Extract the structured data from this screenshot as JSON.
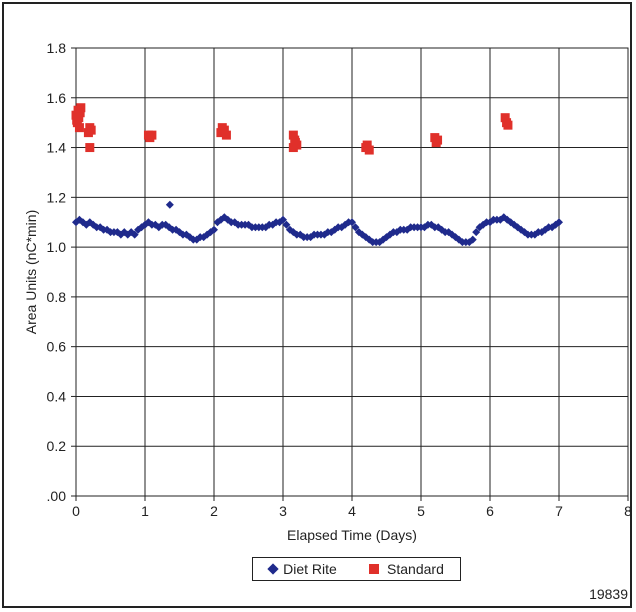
{
  "chart_data": {
    "type": "scatter",
    "title": "",
    "xlabel": "Elapsed Time (Days)",
    "ylabel": "Area Units (nC*min)",
    "xlim": [
      0,
      8
    ],
    "ylim": [
      0,
      1.8
    ],
    "x_ticks": [
      "0",
      "1",
      "2",
      "3",
      "4",
      "5",
      "6",
      "7",
      "8"
    ],
    "y_ticks": [
      ".00",
      "0.2",
      "0.4",
      "0.6",
      "0.8",
      "1.0",
      "1.2",
      "1.4",
      "1.6",
      "1.8"
    ],
    "grid": true,
    "legend_position": "bottom-center",
    "series": [
      {
        "name": "Diet Rite",
        "marker": "diamond",
        "color": "#1f2a8c",
        "x": [
          0.0,
          0.05,
          0.1,
          0.15,
          0.2,
          0.25,
          0.3,
          0.35,
          0.4,
          0.45,
          0.5,
          0.55,
          0.6,
          0.65,
          0.7,
          0.75,
          0.8,
          0.85,
          0.9,
          0.95,
          1.0,
          1.05,
          1.1,
          1.15,
          1.2,
          1.25,
          1.3,
          1.35,
          1.4,
          1.45,
          1.5,
          1.55,
          1.6,
          1.65,
          1.7,
          1.75,
          1.8,
          1.85,
          1.9,
          1.95,
          2.0,
          2.05,
          2.1,
          2.15,
          2.2,
          2.25,
          2.3,
          2.35,
          2.4,
          2.45,
          2.5,
          2.55,
          2.6,
          2.65,
          2.7,
          2.75,
          2.8,
          2.85,
          2.9,
          2.95,
          3.0,
          3.05,
          3.1,
          3.15,
          3.2,
          3.25,
          3.3,
          3.35,
          3.4,
          3.45,
          3.5,
          3.55,
          3.6,
          3.65,
          3.7,
          3.75,
          3.8,
          3.85,
          3.9,
          3.95,
          4.0,
          4.05,
          4.1,
          4.15,
          4.2,
          4.25,
          4.3,
          4.35,
          4.4,
          4.45,
          4.5,
          4.55,
          4.6,
          4.65,
          4.7,
          4.75,
          4.8,
          4.85,
          4.9,
          4.95,
          5.0,
          5.05,
          5.1,
          5.15,
          5.2,
          5.25,
          5.3,
          5.35,
          5.4,
          5.45,
          5.5,
          5.55,
          5.6,
          5.65,
          5.7,
          5.75,
          5.8,
          5.85,
          5.9,
          5.95,
          6.0,
          6.05,
          6.1,
          6.15,
          6.2,
          6.25,
          6.3,
          6.35,
          6.4,
          6.45,
          6.5,
          6.55,
          6.6,
          6.65,
          6.7,
          6.75,
          6.8,
          6.85,
          6.9,
          6.95,
          7.0,
          1.36
        ],
        "y": [
          1.1,
          1.11,
          1.1,
          1.09,
          1.1,
          1.09,
          1.08,
          1.08,
          1.07,
          1.07,
          1.06,
          1.06,
          1.06,
          1.05,
          1.06,
          1.05,
          1.06,
          1.05,
          1.07,
          1.08,
          1.09,
          1.1,
          1.09,
          1.09,
          1.08,
          1.09,
          1.09,
          1.08,
          1.07,
          1.07,
          1.06,
          1.05,
          1.05,
          1.04,
          1.03,
          1.03,
          1.04,
          1.04,
          1.05,
          1.06,
          1.07,
          1.1,
          1.11,
          1.12,
          1.11,
          1.1,
          1.1,
          1.09,
          1.09,
          1.09,
          1.09,
          1.08,
          1.08,
          1.08,
          1.08,
          1.08,
          1.09,
          1.09,
          1.1,
          1.1,
          1.11,
          1.09,
          1.07,
          1.06,
          1.05,
          1.05,
          1.04,
          1.04,
          1.04,
          1.05,
          1.05,
          1.05,
          1.05,
          1.06,
          1.06,
          1.07,
          1.08,
          1.08,
          1.09,
          1.1,
          1.1,
          1.08,
          1.06,
          1.05,
          1.04,
          1.03,
          1.02,
          1.02,
          1.02,
          1.03,
          1.04,
          1.05,
          1.06,
          1.06,
          1.07,
          1.07,
          1.07,
          1.08,
          1.08,
          1.08,
          1.08,
          1.08,
          1.09,
          1.09,
          1.08,
          1.08,
          1.07,
          1.06,
          1.06,
          1.05,
          1.04,
          1.03,
          1.02,
          1.02,
          1.02,
          1.03,
          1.06,
          1.08,
          1.09,
          1.1,
          1.1,
          1.11,
          1.11,
          1.11,
          1.12,
          1.11,
          1.1,
          1.09,
          1.08,
          1.07,
          1.06,
          1.05,
          1.05,
          1.05,
          1.06,
          1.06,
          1.07,
          1.08,
          1.08,
          1.09,
          1.1,
          1.17
        ]
      },
      {
        "name": "Standard",
        "marker": "square",
        "color": "#e0302a",
        "x": [
          0.0,
          0.01,
          0.02,
          0.03,
          0.04,
          0.05,
          0.06,
          0.07,
          0.18,
          0.2,
          0.22,
          0.2,
          1.05,
          1.07,
          1.1,
          2.1,
          2.12,
          2.15,
          2.18,
          3.15,
          3.17,
          3.2,
          3.15,
          3.18,
          4.2,
          4.22,
          4.25,
          5.2,
          5.22,
          5.24,
          6.22,
          6.24,
          6.26
        ],
        "y": [
          1.53,
          1.51,
          1.5,
          1.55,
          1.52,
          1.48,
          1.54,
          1.56,
          1.46,
          1.48,
          1.47,
          1.4,
          1.45,
          1.44,
          1.45,
          1.46,
          1.48,
          1.47,
          1.45,
          1.45,
          1.43,
          1.41,
          1.4,
          1.42,
          1.4,
          1.41,
          1.39,
          1.44,
          1.42,
          1.43,
          1.52,
          1.5,
          1.49
        ]
      }
    ]
  },
  "figure_id": "19839"
}
